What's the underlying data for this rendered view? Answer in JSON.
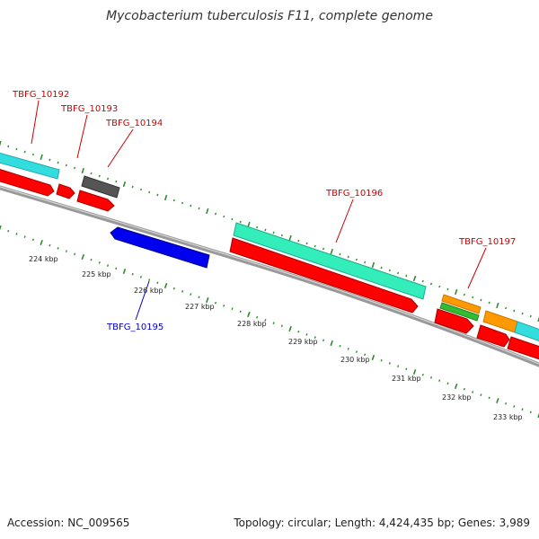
{
  "title": "Mycobacterium tuberculosis F11, complete genome",
  "footer": {
    "accession": "Accession: NC_009565",
    "topology": "Topology: circular;",
    "length": "Length: 4,424,435 bp;",
    "genes": "Genes: 3,989"
  },
  "colors": {
    "cds": "#ff0000",
    "cds_dark": "#cc0000",
    "backbone": "#888888",
    "tick": "#2e8b2e",
    "tick_label": "#222222",
    "label_red": "#cc0000",
    "label_blue": "#0000cc",
    "cyan": "#33dddd",
    "gray_gene": "#555555",
    "blue_gene": "#0000ee",
    "teal": "#33eebb",
    "orange": "#ff9900",
    "green": "#33bb33"
  },
  "ticks": [
    "224 kbp",
    "225 kbp",
    "226 kbp",
    "227 kbp",
    "228 kbp",
    "229 kbp",
    "230 kbp",
    "231 kbp",
    "232 kbp",
    "233 kbp"
  ],
  "gene_labels": [
    {
      "name": "TBFG_10192",
      "color": "red"
    },
    {
      "name": "TBFG_10193",
      "color": "red"
    },
    {
      "name": "TBFG_10194",
      "color": "red"
    },
    {
      "name": "TBFG_10195",
      "color": "blue"
    },
    {
      "name": "TBFG_10196",
      "color": "red"
    },
    {
      "name": "TBFG_10197",
      "color": "red"
    }
  ]
}
